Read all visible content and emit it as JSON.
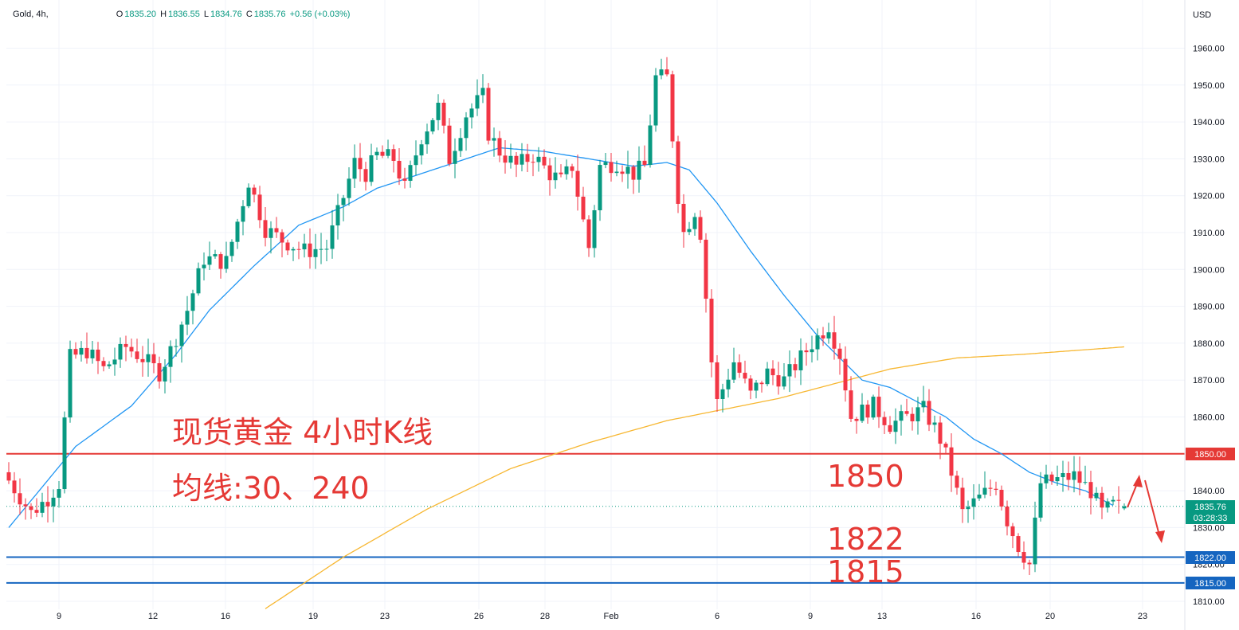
{
  "header": {
    "symbol": "Gold, 4h,",
    "o_label": "O",
    "o_value": "1835.20",
    "h_label": "H",
    "h_value": "1836.55",
    "l_label": "L",
    "l_value": "1834.76",
    "c_label": "C",
    "c_value": "1835.76",
    "change": "+0.56 (+0.03%)"
  },
  "currency": "USD",
  "annotations": {
    "title": "现货黄金 4小时K线",
    "subtitle": "均线:30、240",
    "level_1850": "1850",
    "level_1822": "1822",
    "level_1815": "1815"
  },
  "price_badges": {
    "level_1850": "1850.00",
    "current_price": "1835.76",
    "countdown": "03:28:33",
    "level_1822": "1822.00",
    "level_1815": "1815.00"
  },
  "colors": {
    "up": "#089981",
    "down": "#f23645",
    "ma30": "#2196f3",
    "ma240": "#f7b731",
    "resistance": "#e53935",
    "support": "#1565c0",
    "annotation": "#e53935"
  },
  "chart_data": {
    "type": "candlestick",
    "symbol": "Gold",
    "timeframe": "4h",
    "currency": "USD",
    "ylim": [
      1810,
      1965
    ],
    "y_ticks": [
      1810,
      1820,
      1830,
      1840,
      1850,
      1860,
      1870,
      1880,
      1890,
      1900,
      1910,
      1920,
      1930,
      1940,
      1950,
      1960
    ],
    "x_tick_labels": [
      "9",
      "12",
      "16",
      "19",
      "23",
      "26",
      "28",
      "Feb",
      "6",
      "9",
      "13",
      "16",
      "20",
      "23"
    ],
    "horizontal_levels": [
      {
        "value": 1850,
        "label": "1850"
      },
      {
        "value": 1822,
        "label": "1822"
      },
      {
        "value": 1815,
        "label": "1815"
      }
    ],
    "price_path": [
      [
        0,
        1845
      ],
      [
        5,
        1834
      ],
      [
        8,
        1838
      ],
      [
        10,
        1842
      ],
      [
        12,
        1876
      ],
      [
        15,
        1878
      ],
      [
        18,
        1873
      ],
      [
        22,
        1879
      ],
      [
        25,
        1876
      ],
      [
        28,
        1872
      ],
      [
        30,
        1878
      ],
      [
        33,
        1889
      ],
      [
        36,
        1903
      ],
      [
        40,
        1902
      ],
      [
        44,
        1924
      ],
      [
        47,
        1911
      ],
      [
        50,
        1908
      ],
      [
        54,
        1905
      ],
      [
        58,
        1906
      ],
      [
        60,
        1915
      ],
      [
        63,
        1929
      ],
      [
        65,
        1926
      ],
      [
        67,
        1931
      ],
      [
        70,
        1930
      ],
      [
        72,
        1922
      ],
      [
        75,
        1936
      ],
      [
        78,
        1944
      ],
      [
        80,
        1930
      ],
      [
        83,
        1942
      ],
      [
        86,
        1947
      ],
      [
        87,
        1937
      ],
      [
        89,
        1932
      ],
      [
        92,
        1928
      ],
      [
        95,
        1931
      ],
      [
        98,
        1926
      ],
      [
        100,
        1924
      ],
      [
        102,
        1928
      ],
      [
        104,
        1913
      ],
      [
        105,
        1906
      ],
      [
        107,
        1928
      ],
      [
        110,
        1929
      ],
      [
        113,
        1926
      ],
      [
        115,
        1928
      ],
      [
        117,
        1952
      ],
      [
        119,
        1952
      ],
      [
        121,
        1920
      ],
      [
        122,
        1910
      ],
      [
        124,
        1916
      ],
      [
        125,
        1910
      ],
      [
        127,
        1875
      ],
      [
        128,
        1864
      ],
      [
        131,
        1875
      ],
      [
        134,
        1866
      ],
      [
        137,
        1872
      ],
      [
        140,
        1870
      ],
      [
        143,
        1876
      ],
      [
        145,
        1880
      ],
      [
        148,
        1885
      ],
      [
        150,
        1877
      ],
      [
        152,
        1860
      ],
      [
        156,
        1863
      ],
      [
        159,
        1858
      ],
      [
        162,
        1860
      ],
      [
        165,
        1862
      ],
      [
        167,
        1857
      ],
      [
        168,
        1854
      ],
      [
        170,
        1845
      ],
      [
        172,
        1834
      ],
      [
        175,
        1838
      ],
      [
        178,
        1842
      ],
      [
        180,
        1832
      ],
      [
        182,
        1825
      ],
      [
        184,
        1820
      ],
      [
        186,
        1842
      ],
      [
        189,
        1843
      ],
      [
        192,
        1844
      ],
      [
        195,
        1840
      ],
      [
        197,
        1834
      ],
      [
        199,
        1836
      ],
      [
        200,
        1835.76
      ]
    ],
    "ma30_path": [
      [
        0,
        1830
      ],
      [
        12,
        1852
      ],
      [
        22,
        1863
      ],
      [
        30,
        1877
      ],
      [
        36,
        1889
      ],
      [
        44,
        1901
      ],
      [
        52,
        1912
      ],
      [
        60,
        1917
      ],
      [
        66,
        1922
      ],
      [
        72,
        1925
      ],
      [
        80,
        1929
      ],
      [
        88,
        1933
      ],
      [
        96,
        1932
      ],
      [
        104,
        1930
      ],
      [
        112,
        1928
      ],
      [
        118,
        1929
      ],
      [
        122,
        1927
      ],
      [
        127,
        1918
      ],
      [
        133,
        1905
      ],
      [
        139,
        1893
      ],
      [
        145,
        1882
      ],
      [
        149,
        1876
      ],
      [
        153,
        1870
      ],
      [
        158,
        1868
      ],
      [
        163,
        1864
      ],
      [
        168,
        1860
      ],
      [
        173,
        1854
      ],
      [
        178,
        1850
      ],
      [
        183,
        1845
      ],
      [
        188,
        1842
      ],
      [
        193,
        1840
      ],
      [
        198,
        1836
      ]
    ],
    "ma240_path": [
      [
        46,
        1808
      ],
      [
        60,
        1822
      ],
      [
        75,
        1835
      ],
      [
        90,
        1846
      ],
      [
        104,
        1853
      ],
      [
        118,
        1859
      ],
      [
        128,
        1862
      ],
      [
        138,
        1865
      ],
      [
        148,
        1869
      ],
      [
        158,
        1873
      ],
      [
        170,
        1876
      ],
      [
        182,
        1877
      ],
      [
        200,
        1879
      ]
    ],
    "last_price": 1835.76,
    "last_open": 1835.2,
    "last_high": 1836.55,
    "last_low": 1834.76,
    "change": 0.56,
    "change_pct": 0.03
  }
}
